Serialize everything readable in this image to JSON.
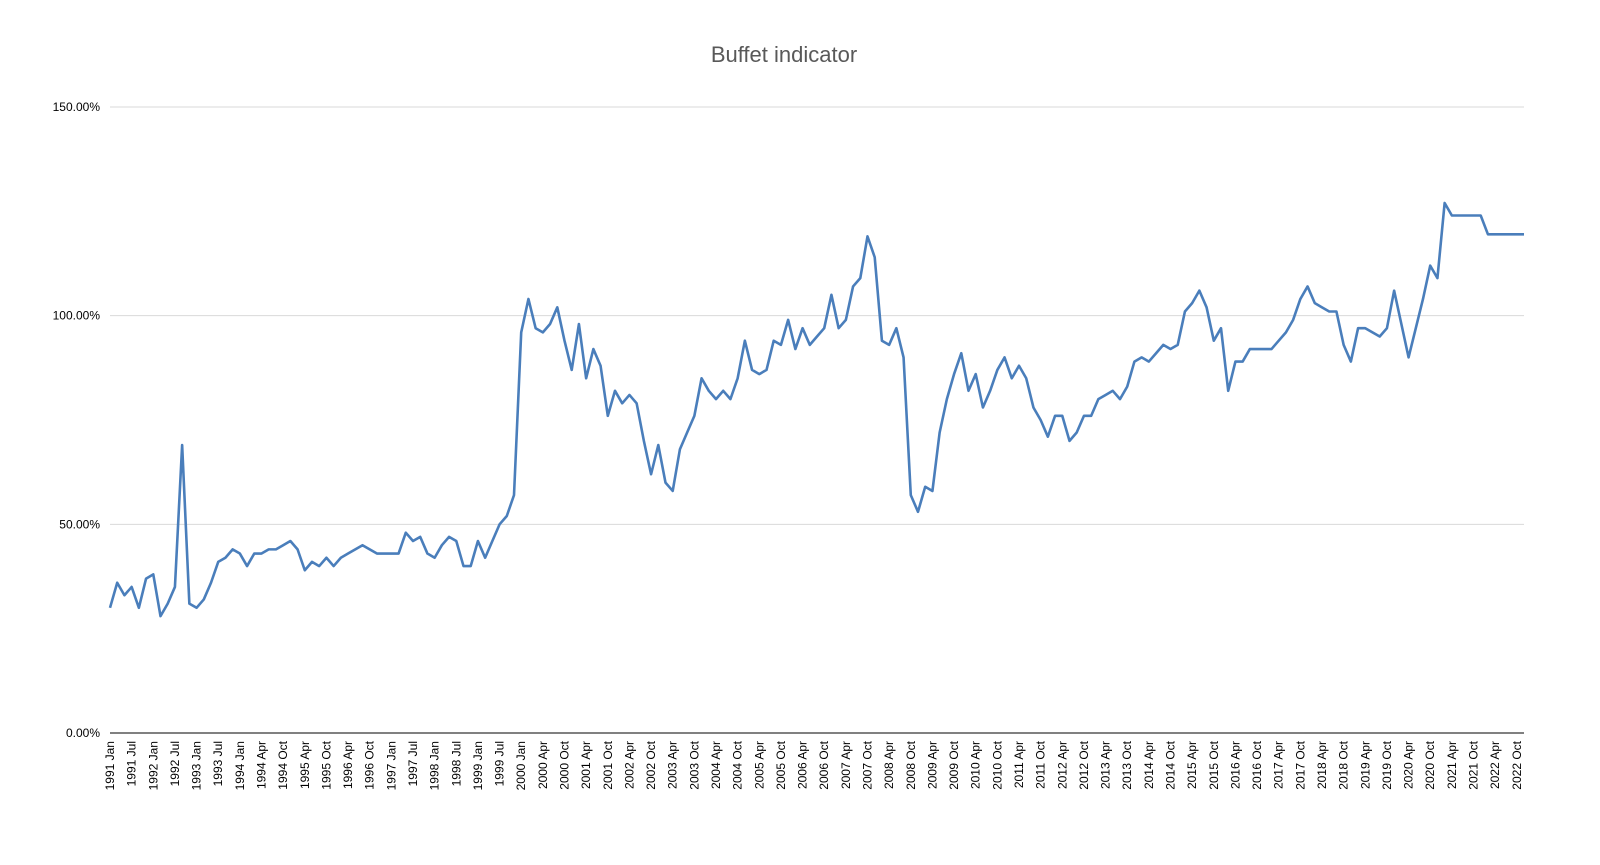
{
  "chart_data": {
    "type": "line",
    "title": "Buffet indicator",
    "categories": [
      "1991 Jan",
      null,
      null,
      "1991 Jul",
      null,
      null,
      "1992 Jan",
      null,
      null,
      "1992 Jul",
      null,
      null,
      "1993 Jan",
      null,
      null,
      "1993 Jul",
      null,
      null,
      "1994 Jan",
      null,
      null,
      "1994 Apr",
      null,
      null,
      "1994 Oct",
      null,
      null,
      "1995 Apr",
      null,
      null,
      "1995 Oct",
      null,
      null,
      "1996 Apr",
      null,
      null,
      "1996 Oct",
      null,
      null,
      "1997 Jan",
      null,
      null,
      "1997 Jul",
      null,
      null,
      "1998 Jan",
      null,
      null,
      "1998 Jul",
      null,
      null,
      "1999 Jan",
      null,
      null,
      "1999 Jul",
      null,
      null,
      "2000 Jan",
      null,
      null,
      "2000 Apr",
      null,
      null,
      "2000 Oct",
      null,
      null,
      "2001 Apr",
      null,
      null,
      "2001 Oct",
      null,
      null,
      "2002 Apr",
      null,
      null,
      "2002 Oct",
      null,
      null,
      "2003 Apr",
      null,
      null,
      "2003 Oct",
      null,
      null,
      "2004 Apr",
      null,
      null,
      "2004 Oct",
      null,
      null,
      "2005 Apr",
      null,
      null,
      "2005 Oct",
      null,
      null,
      "2006 Apr",
      null,
      null,
      "2006 Oct",
      null,
      null,
      "2007 Apr",
      null,
      null,
      "2007 Oct",
      null,
      null,
      "2008 Apr",
      null,
      null,
      "2008 Oct",
      null,
      null,
      "2009 Apr",
      null,
      null,
      "2009 Oct",
      null,
      null,
      "2010 Apr",
      null,
      null,
      "2010 Oct",
      null,
      null,
      "2011 Apr",
      null,
      null,
      "2011 Oct",
      null,
      null,
      "2012 Apr",
      null,
      null,
      "2012 Oct",
      null,
      null,
      "2013 Apr",
      null,
      null,
      "2013 Oct",
      null,
      null,
      "2014 Apr",
      null,
      null,
      "2014 Oct",
      null,
      null,
      "2015 Apr",
      null,
      null,
      "2015 Oct",
      null,
      null,
      "2016 Apr",
      null,
      null,
      "2016 Oct",
      null,
      null,
      "2017 Apr",
      null,
      null,
      "2017 Oct",
      null,
      null,
      "2018 Apr",
      null,
      null,
      "2018 Oct",
      null,
      null,
      "2019 Apr",
      null,
      null,
      "2019 Oct",
      null,
      null,
      "2020 Apr",
      null,
      null,
      "2020 Oct",
      null,
      null,
      "2021 Apr",
      null,
      null,
      "2021 Oct",
      null,
      null,
      "2022 Apr",
      null,
      null,
      "2022 Oct",
      null
    ],
    "series": [
      {
        "name": "Buffet indicator",
        "color": "#4a7ebb",
        "values": [
          30,
          36,
          33,
          35,
          30,
          37,
          38,
          28,
          31,
          35,
          69,
          31,
          30,
          32,
          36,
          41,
          42,
          44,
          43,
          40,
          43,
          43,
          44,
          44,
          45,
          46,
          44,
          39,
          41,
          40,
          42,
          40,
          42,
          43,
          44,
          45,
          44,
          43,
          43,
          43,
          43,
          48,
          46,
          47,
          43,
          42,
          45,
          47,
          46,
          40,
          40,
          46,
          42,
          46,
          50,
          52,
          57,
          96,
          104,
          97,
          96,
          98,
          102,
          94,
          87,
          98,
          85,
          92,
          88,
          76,
          82,
          79,
          81,
          79,
          70,
          62,
          69,
          60,
          58,
          68,
          72,
          76,
          85,
          82,
          80,
          82,
          80,
          85,
          94,
          87,
          86,
          87,
          94,
          93,
          99,
          92,
          97,
          93,
          95,
          97,
          105,
          97,
          99,
          107,
          109,
          119,
          114,
          94,
          93,
          97,
          90,
          57,
          53,
          59,
          58,
          72,
          80,
          86,
          91,
          82,
          86,
          78,
          82,
          87,
          90,
          85,
          88,
          85,
          78,
          75,
          71,
          76,
          76,
          70,
          72,
          76,
          76,
          80,
          81,
          82,
          80,
          83,
          89,
          90,
          89,
          91,
          93,
          92,
          93,
          101,
          103,
          106,
          102,
          94,
          97,
          82,
          89,
          89,
          92,
          92,
          92,
          92,
          94,
          96,
          99,
          104,
          107,
          103,
          102,
          101,
          101,
          93,
          89,
          97,
          97,
          96,
          95,
          97,
          106,
          98,
          90,
          97,
          104,
          112,
          109,
          127,
          124,
          124,
          124,
          124,
          124,
          119.5,
          119.5,
          119.5,
          119.5,
          119.5,
          119.5
        ]
      }
    ],
    "ylim": [
      0,
      150
    ],
    "yticks": [
      {
        "value": 0,
        "label": "0.00%"
      },
      {
        "value": 50,
        "label": "50.00%"
      },
      {
        "value": 100,
        "label": "100.00%"
      },
      {
        "value": 150,
        "label": "150.00%"
      }
    ],
    "grid": true
  }
}
